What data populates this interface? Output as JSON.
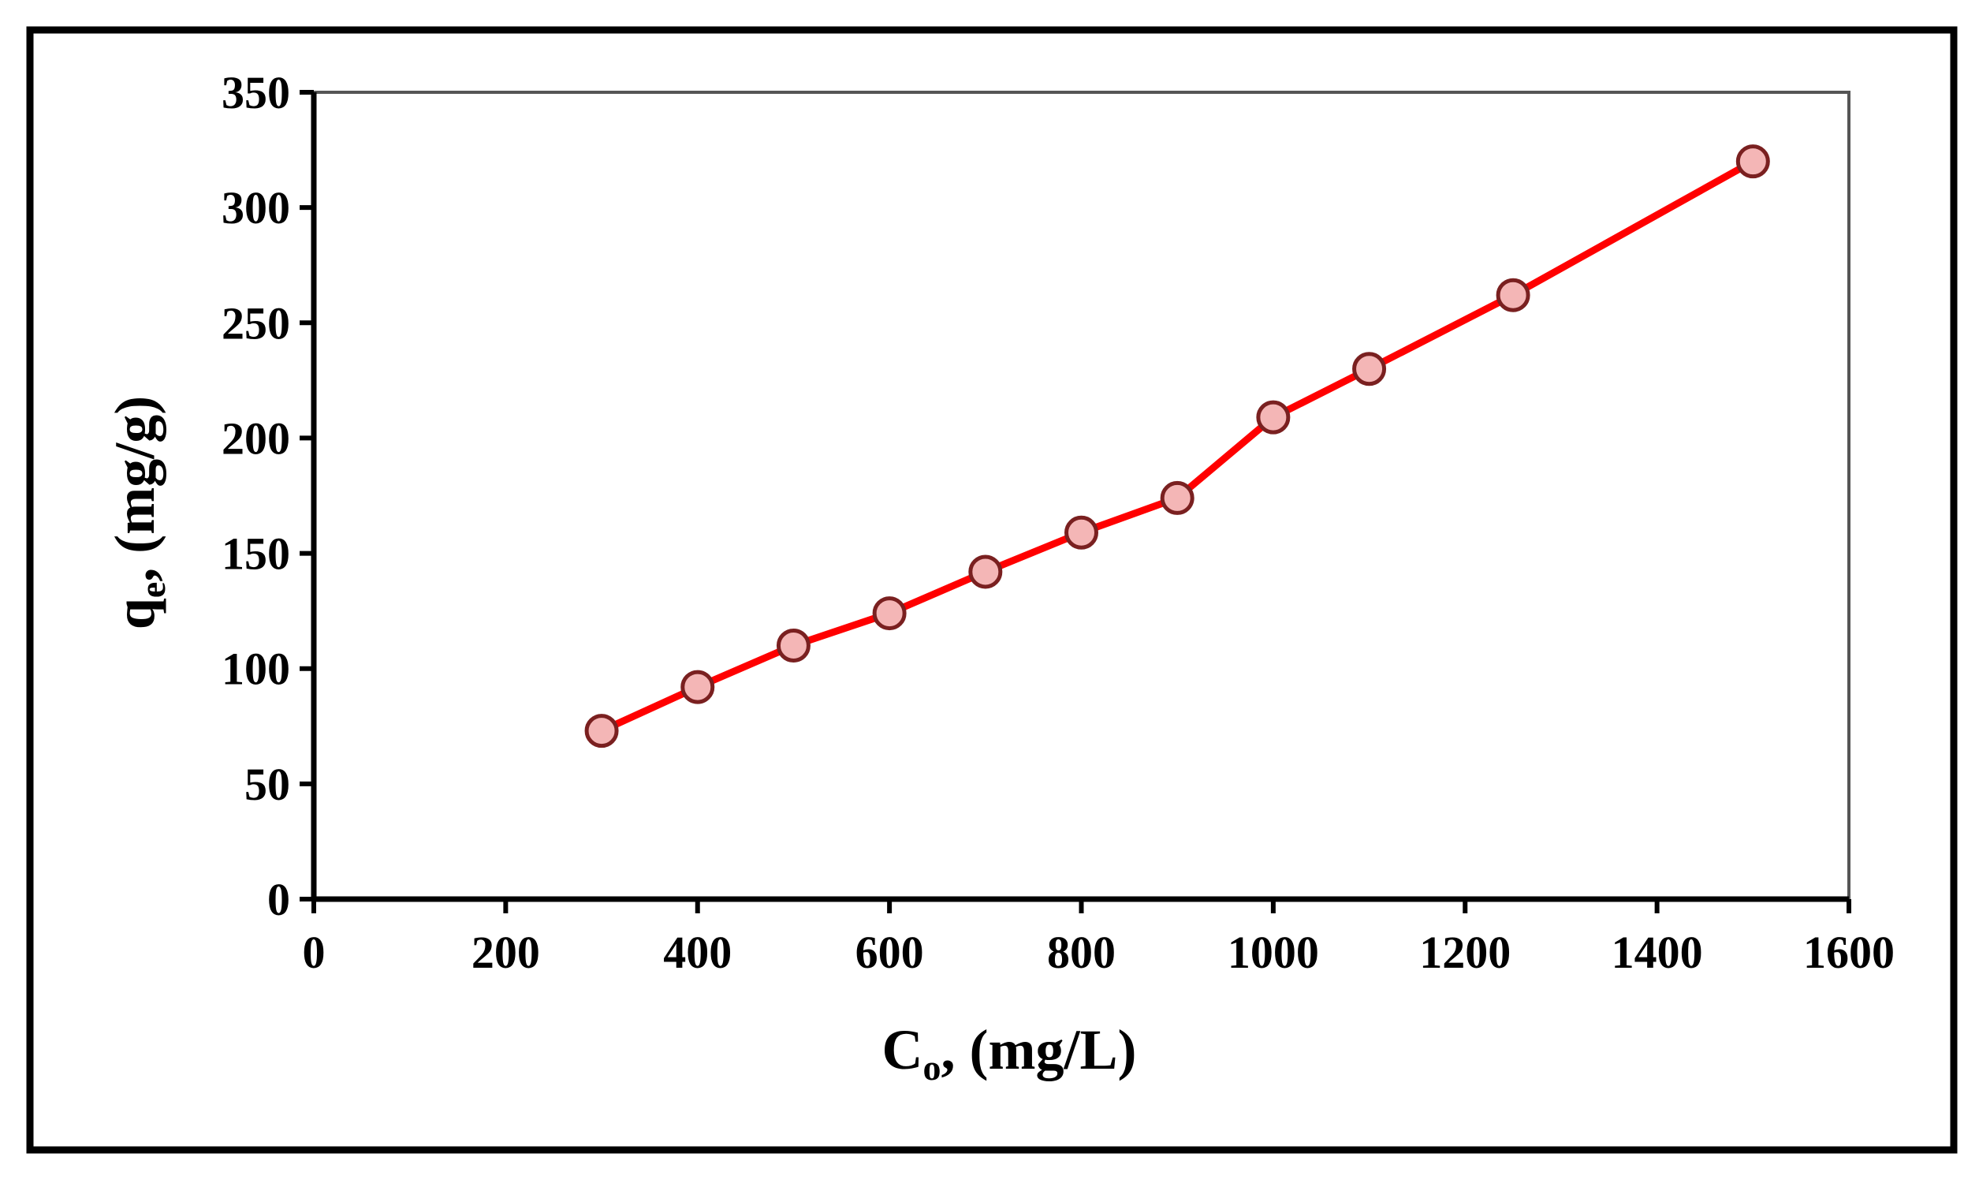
{
  "chart_data": {
    "type": "line",
    "title": "",
    "x": [
      300,
      400,
      500,
      600,
      700,
      800,
      900,
      1000,
      1100,
      1250,
      1500
    ],
    "series": [
      {
        "name": "qe",
        "values": [
          73,
          92,
          110,
          124,
          142,
          159,
          174,
          209,
          230,
          262,
          320
        ]
      }
    ],
    "xlabel": {
      "main": "C",
      "sub": "o",
      "rest": ", (mg/L)"
    },
    "ylabel": {
      "main": "q",
      "sub": "e",
      "rest": ", (mg/g)"
    },
    "xlim": [
      0,
      1600
    ],
    "ylim": [
      0,
      350
    ],
    "x_ticks": [
      0,
      200,
      400,
      600,
      800,
      1000,
      1200,
      1400,
      1600
    ],
    "y_ticks": [
      0,
      50,
      100,
      150,
      200,
      250,
      300,
      350
    ],
    "grid": false,
    "legend": "none",
    "colors": {
      "line": "#ff0000",
      "marker_fill": "#f4b6b6",
      "marker_edge": "#7a2020",
      "axis": "#000000",
      "frame": "#000000"
    }
  }
}
